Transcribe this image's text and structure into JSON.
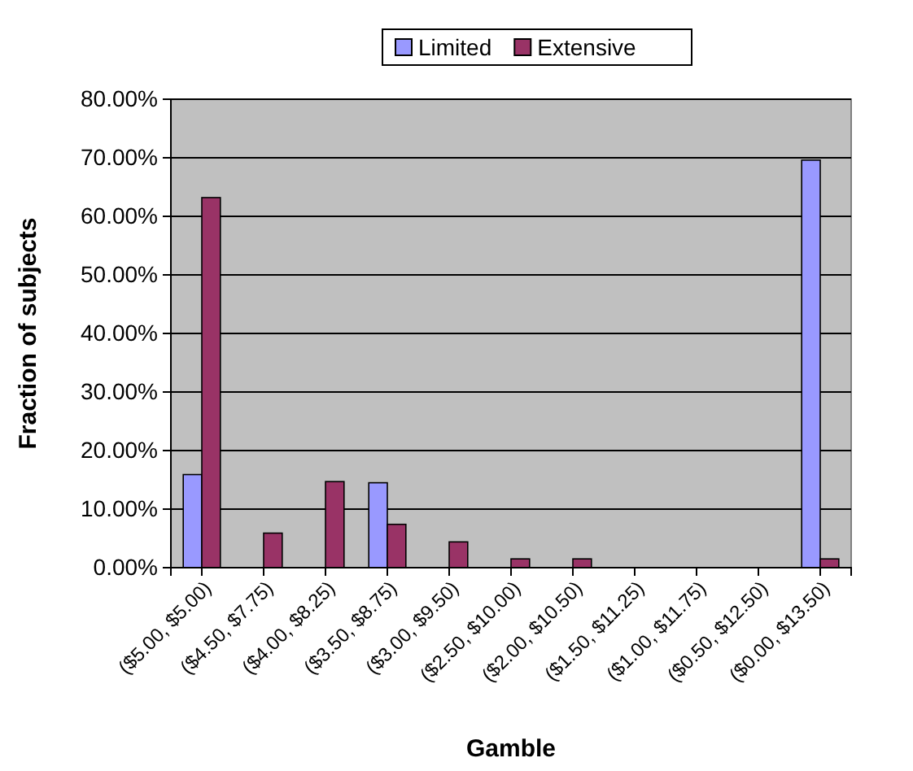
{
  "chart_data": {
    "type": "bar",
    "xlabel": "Gamble",
    "ylabel": "Fraction of subjects",
    "categories": [
      "($5.00, $5.00)",
      "($4.50, $7.75)",
      "($4.00, $8.25)",
      "($3.50, $8.75)",
      "($3.00, $9.50)",
      "($2.50, $10.00)",
      "($2.00, $10.50)",
      "($1.50, $11.25)",
      "($1.00, $11.75)",
      "($0.50, $12.50)",
      "($0.00, $13.50)"
    ],
    "series": [
      {
        "name": "Limited",
        "color": "#9999ff",
        "values": [
          15.9,
          0,
          0,
          14.5,
          0,
          0,
          0,
          0,
          0,
          0,
          69.6
        ]
      },
      {
        "name": "Extensive",
        "color": "#993366",
        "values": [
          63.2,
          5.9,
          14.7,
          7.4,
          4.4,
          1.5,
          1.5,
          0,
          0,
          0,
          1.5
        ]
      }
    ],
    "ylim": [
      0,
      80
    ],
    "yticks": [
      {
        "value": 0,
        "label": "0.00%"
      },
      {
        "value": 10,
        "label": "10.00%"
      },
      {
        "value": 20,
        "label": "20.00%"
      },
      {
        "value": 30,
        "label": "30.00%"
      },
      {
        "value": 40,
        "label": "40.00%"
      },
      {
        "value": 50,
        "label": "50.00%"
      },
      {
        "value": 60,
        "label": "60.00%"
      },
      {
        "value": 70,
        "label": "70.00%"
      },
      {
        "value": 80,
        "label": "80.00%"
      }
    ],
    "grid": "y",
    "legend": "top"
  }
}
